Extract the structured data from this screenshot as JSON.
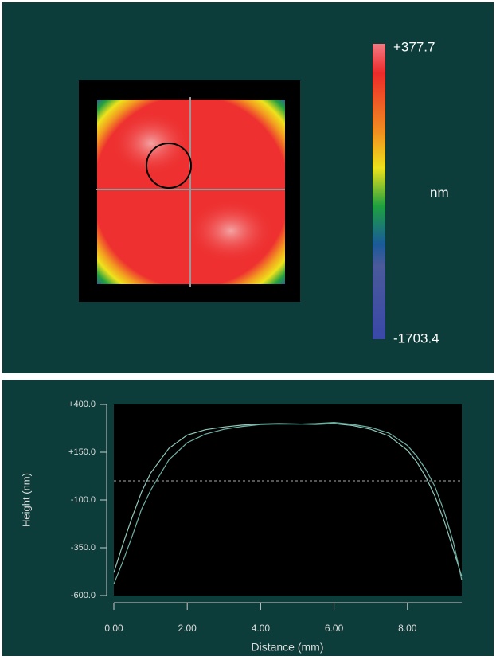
{
  "heatmap": {
    "max_label": "+377.7",
    "unit": "nm",
    "min_label": "-1703.4"
  },
  "chart_data": {
    "type": "line",
    "x_label": "Distance (mm)",
    "y_label": "Height (nm)",
    "x": [
      0,
      0.25,
      0.5,
      0.75,
      1,
      1.5,
      2,
      2.5,
      3,
      3.5,
      4,
      4.5,
      5,
      5.5,
      6,
      6.5,
      7,
      7.5,
      8,
      8.25,
      8.5,
      8.75,
      9,
      9.25,
      9.48
    ],
    "series": [
      {
        "color": "#8fc9bb",
        "values": [
          -480,
          -330,
          -190,
          -60,
          40,
          170,
          240,
          268,
          282,
          292,
          298,
          300,
          298,
          296,
          300,
          290,
          270,
          235,
          160,
          100,
          20,
          -80,
          -210,
          -360,
          -500
        ]
      },
      {
        "color": "#6fb3a6",
        "values": [
          -540,
          -420,
          -290,
          -150,
          -50,
          110,
          200,
          245,
          270,
          285,
          295,
          298,
          297,
          300,
          306,
          296,
          280,
          250,
          185,
          130,
          60,
          -30,
          -160,
          -320,
          -520
        ]
      }
    ],
    "hline": 0,
    "xlim": [
      0,
      9.48
    ],
    "ylim": [
      -600,
      400
    ],
    "xticks": [
      {
        "value": 0,
        "label": "0.00"
      },
      {
        "value": 2,
        "label": "2.00"
      },
      {
        "value": 4,
        "label": "4.00"
      },
      {
        "value": 6,
        "label": "6.00"
      },
      {
        "value": 8,
        "label": "8.00"
      }
    ],
    "yticks": [
      {
        "value": 400,
        "label": "+400.0"
      },
      {
        "value": 150,
        "label": "+150.0"
      },
      {
        "value": -100,
        "label": "-100.0"
      },
      {
        "value": -350,
        "label": "-350.0"
      },
      {
        "value": -600,
        "label": "-600.0"
      }
    ]
  }
}
